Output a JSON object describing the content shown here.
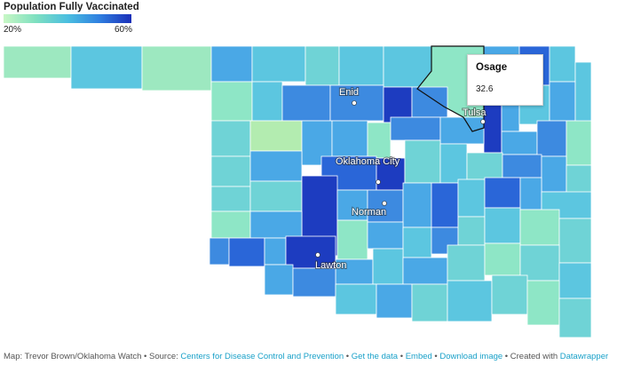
{
  "map": {
    "title": "Population Fully Vaccinated",
    "legend": {
      "min_label": "20%",
      "max_label": "60%",
      "color_low": "#c8f7c5",
      "color_high": "#1a2fb8"
    },
    "cities": [
      {
        "name": "Enid"
      },
      {
        "name": "Tulsa"
      },
      {
        "name": "Oklahoma City"
      },
      {
        "name": "Norman"
      },
      {
        "name": "Lawton"
      }
    ],
    "tooltip": {
      "county": "Osage",
      "value": "32.6",
      "partial_label": "lle"
    }
  },
  "footer": {
    "credit": "Map: Trevor Brown/Oklahoma Watch",
    "sep": " • ",
    "source_prefix": "Source: ",
    "source_link": "Centers for Disease Control and Prevention",
    "get_data": "Get the data",
    "embed": "Embed",
    "download": "Download image",
    "created_prefix": "Created with ",
    "created_link": "Datawrapper"
  }
}
